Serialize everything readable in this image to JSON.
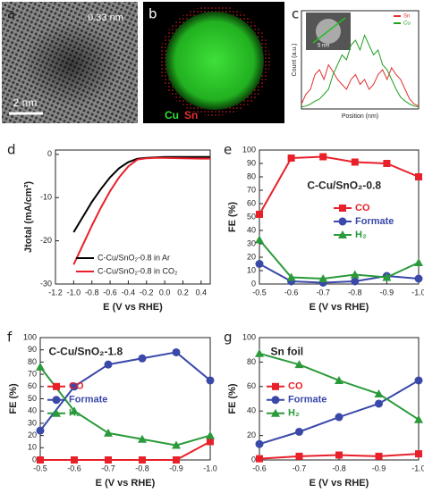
{
  "panels": [
    "a",
    "b",
    "c",
    "d",
    "e",
    "f",
    "g"
  ],
  "images": {
    "a": {
      "lattice": "0.33 nm",
      "scale": "2 nm"
    },
    "b": {
      "cu": "Cu",
      "sn": "Sn"
    },
    "c": {
      "scale": "5 nm"
    }
  },
  "chart_data": [
    {
      "type": "line",
      "x_label": "Position (nm)",
      "y_label": "Count (a.u.)",
      "xlim": [
        0,
        13
      ],
      "ylim": [
        0,
        100
      ],
      "legend": "upper right",
      "x": [
        0,
        0.5,
        1,
        1.5,
        2,
        2.5,
        3,
        3.5,
        4,
        4.5,
        5,
        5.5,
        6,
        6.5,
        7,
        7.5,
        8,
        8.5,
        9,
        9.5,
        10,
        10.5,
        11,
        11.5,
        12,
        12.5,
        13
      ],
      "series": [
        {
          "name": "Sn",
          "color": "#e03030",
          "values": [
            5,
            15,
            20,
            35,
            40,
            30,
            45,
            38,
            30,
            25,
            20,
            30,
            35,
            25,
            30,
            20,
            25,
            35,
            40,
            30,
            42,
            35,
            30,
            20,
            10,
            5,
            3
          ]
        },
        {
          "name": "Cu",
          "color": "#20a020",
          "values": [
            2,
            3,
            5,
            8,
            10,
            15,
            20,
            35,
            45,
            55,
            50,
            65,
            70,
            60,
            75,
            65,
            55,
            60,
            45,
            40,
            30,
            20,
            12,
            8,
            5,
            3,
            2
          ]
        }
      ]
    },
    {
      "type": "line",
      "x_label": "E (V vs RHE)",
      "y_label": "Jtotal (mA/cm²)",
      "xlim": [
        -1.2,
        0.5
      ],
      "ylim": [
        -30,
        1
      ],
      "legend": "lower right",
      "xticks": [
        -1.2,
        {
          "value": -1,
          "label": "-1.0"
        },
        -0.8,
        -0.6,
        -0.4,
        -0.2,
        {
          "value": 0,
          "label": "0.0"
        },
        0.2,
        0.4
      ],
      "yticks": [
        0,
        -10,
        -20,
        -30
      ],
      "x": [
        -1,
        -0.9,
        -0.8,
        -0.7,
        -0.6,
        -0.5,
        -0.4,
        -0.3,
        -0.2,
        -0.1,
        0,
        0.2,
        0.4,
        0.5
      ],
      "series": [
        {
          "name": "C-Cu/SnO₂-0.8 in Ar",
          "color": "#000000",
          "values": [
            -18,
            -14.5,
            -11,
            -8,
            -5.3,
            -3.2,
            -1.8,
            -1,
            -0.8,
            -0.7,
            -0.6,
            -0.6,
            -0.6,
            -0.6
          ]
        },
        {
          "name": "C-Cu/SnO₂-0.8 in CO₂",
          "color": "#e8202a",
          "values": [
            -25.5,
            -21,
            -16.5,
            -12.3,
            -8.5,
            -5.3,
            -2.8,
            -1.2,
            -0.9,
            -0.8,
            -0.8,
            -0.9,
            -1,
            -1
          ]
        }
      ]
    },
    {
      "type": "line",
      "title": "C-Cu/SnO₂-0.8",
      "x_label": "E (V vs RHE)",
      "y_label": "FE (%)",
      "xlim": [
        -0.5,
        -1
      ],
      "ylim": [
        0,
        100
      ],
      "legend": "center right",
      "xticks": [
        -0.5,
        -0.6,
        -0.7,
        -0.8,
        -0.9,
        {
          "value": -1,
          "label": "-1.0"
        }
      ],
      "yticks": [
        0,
        10,
        20,
        30,
        40,
        50,
        60,
        70,
        80,
        90,
        100
      ],
      "x": [
        -0.5,
        -0.6,
        -0.7,
        -0.8,
        -0.9,
        -1
      ],
      "series": [
        {
          "name": "CO",
          "color": "#e8202a",
          "marker": "square",
          "values": [
            52,
            94,
            95,
            91,
            90,
            80
          ]
        },
        {
          "name": "Formate",
          "color": "#3a48a8",
          "marker": "circle",
          "values": [
            15,
            2,
            1,
            2,
            6,
            4
          ]
        },
        {
          "name": "H₂",
          "color": "#2a9a3a",
          "marker": "triangle",
          "values": [
            33,
            5,
            4,
            7,
            5,
            16
          ]
        }
      ]
    },
    {
      "type": "line",
      "title": "C-Cu/SnO₂-1.8",
      "x_label": "E (V vs RHE)",
      "y_label": "FE (%)",
      "xlim": [
        -0.5,
        -1
      ],
      "ylim": [
        0,
        100
      ],
      "legend": "center left",
      "xticks": [
        -0.5,
        -0.6,
        -0.7,
        -0.8,
        -0.9,
        {
          "value": -1,
          "label": "-1.0"
        }
      ],
      "yticks": [
        0,
        10,
        20,
        30,
        40,
        50,
        60,
        70,
        80,
        90,
        100
      ],
      "x": [
        -0.5,
        -0.6,
        -0.7,
        -0.8,
        -0.9,
        -1
      ],
      "series": [
        {
          "name": "CO",
          "color": "#e8202a",
          "marker": "square",
          "values": [
            0,
            0,
            0,
            0,
            0,
            15
          ]
        },
        {
          "name": "Formate",
          "color": "#3a48a8",
          "marker": "circle",
          "values": [
            24,
            60,
            78,
            83,
            88,
            65
          ]
        },
        {
          "name": "H₂",
          "color": "#2a9a3a",
          "marker": "triangle",
          "values": [
            76,
            40,
            22,
            17,
            12,
            20
          ]
        }
      ]
    },
    {
      "type": "line",
      "title": "Sn foil",
      "x_label": "E (V vs RHE)",
      "y_label": "FE (%)",
      "xlim": [
        -0.6,
        -1
      ],
      "ylim": [
        0,
        100
      ],
      "legend": "center left",
      "xticks": [
        -0.6,
        -0.7,
        -0.8,
        -0.9,
        {
          "value": -1,
          "label": "-1.0"
        }
      ],
      "yticks": [
        0,
        20,
        40,
        60,
        80,
        100
      ],
      "x": [
        -0.6,
        -0.7,
        -0.8,
        -0.9,
        -1
      ],
      "series": [
        {
          "name": "CO",
          "color": "#e8202a",
          "marker": "square",
          "values": [
            1,
            3,
            4,
            3,
            5
          ]
        },
        {
          "name": "Formate",
          "color": "#3a48a8",
          "marker": "circle",
          "values": [
            13,
            23,
            35,
            46,
            65
          ]
        },
        {
          "name": "H₂",
          "color": "#2a9a3a",
          "marker": "triangle",
          "values": [
            87,
            78,
            65,
            54,
            33
          ]
        }
      ]
    }
  ]
}
